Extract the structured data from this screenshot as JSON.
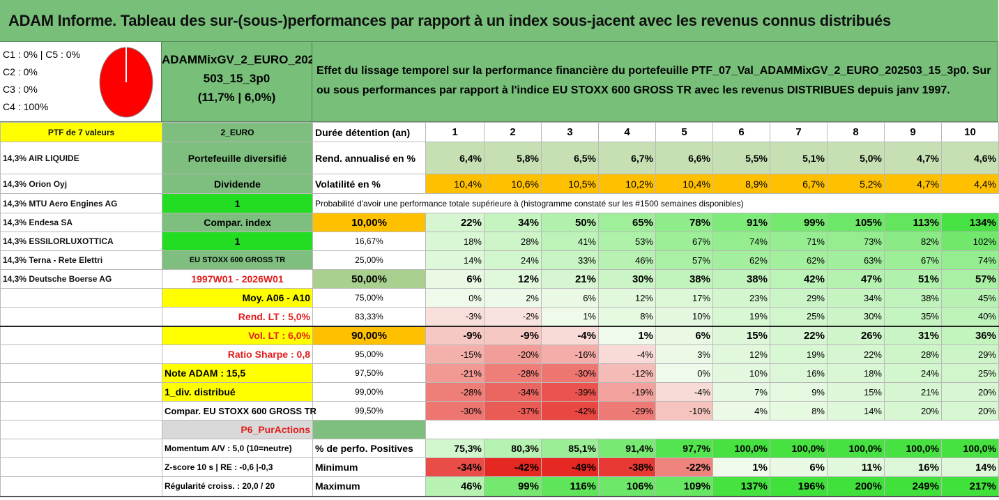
{
  "title": "ADAM Informe. Tableau des sur-(sous-)performances par rapport à un index sous-jacent avec les revenus connus distribués",
  "pie": {
    "lines": [
      "C1 : 0% | C5 : 0%",
      "C2 : 0%",
      "C3 : 0%",
      "C4 : 100%"
    ],
    "color": "#ff0000"
  },
  "portfolio_name": {
    "line1": "ADAMMixGV_2_EURO_202",
    "line2": "503_15_3p0",
    "line3": "(11,7% | 6,0%)"
  },
  "description": {
    "line1": "Effet du lissage temporel sur la performance financière du portefeuille PTF_07_Val_ADAMMixGV_2_EURO_202503_15_3p0. Sur",
    "line2": "ou sous performances par rapport à l'indice EU STOXX 600 GROSS TR avec les revenus DISTRIBUES depuis janv 1997."
  },
  "header": {
    "ptf": "PTF de 7 valeurs",
    "code": "2_EURO",
    "duration_label": "Durée détention (an)",
    "years": [
      "1",
      "2",
      "3",
      "4",
      "5",
      "6",
      "7",
      "8",
      "9",
      "10"
    ]
  },
  "rows": {
    "r1": {
      "a": "14,3% AIR LIQUIDE",
      "b": "Portefeuille diversifié",
      "c": "Rend. annualisé en %",
      "v": [
        "6,4%",
        "5,8%",
        "6,5%",
        "6,7%",
        "6,6%",
        "5,5%",
        "5,1%",
        "5,0%",
        "4,7%",
        "4,6%"
      ]
    },
    "r2": {
      "a": "14,3% Orion Oyj",
      "b": "Dividende",
      "c": "Volatilité en %",
      "v": [
        "10,4%",
        "10,6%",
        "10,5%",
        "10,2%",
        "10,4%",
        "8,9%",
        "6,7%",
        "5,2%",
        "4,7%",
        "4,4%"
      ]
    },
    "r3": {
      "a": "14,3% MTU Aero Engines AG",
      "b": "1",
      "c": "Probabilité d'avoir une performance totale supérieure à (histogramme constaté sur les #1500 semaines disponibles)"
    },
    "r4": {
      "a": "14,3% Endesa SA",
      "b": "Compar. index",
      "c": "10,00%",
      "v": [
        "22%",
        "34%",
        "50%",
        "65%",
        "78%",
        "91%",
        "99%",
        "105%",
        "113%",
        "134%"
      ]
    },
    "r5": {
      "a": "14,3% ESSILORLUXOTTICA",
      "b": "1",
      "c": "16,67%",
      "v": [
        "18%",
        "28%",
        "41%",
        "53%",
        "67%",
        "74%",
        "71%",
        "73%",
        "82%",
        "102%"
      ]
    },
    "r6": {
      "a": "14,3% Terna - Rete Elettri",
      "b": "EU STOXX 600 GROSS TR",
      "c": "25,00%",
      "v": [
        "14%",
        "24%",
        "33%",
        "46%",
        "57%",
        "62%",
        "62%",
        "63%",
        "67%",
        "74%"
      ]
    },
    "r7": {
      "a": "14,3% Deutsche Boerse AG",
      "b": "1997W01 - 2026W01",
      "c": "50,00%",
      "v": [
        "6%",
        "12%",
        "21%",
        "30%",
        "38%",
        "38%",
        "42%",
        "47%",
        "51%",
        "57%"
      ]
    },
    "r8": {
      "a": "",
      "b": "Moy. A06 - A10",
      "c": "75,00%",
      "v": [
        "0%",
        "2%",
        "6%",
        "12%",
        "17%",
        "23%",
        "29%",
        "34%",
        "38%",
        "45%"
      ]
    },
    "r9": {
      "a": "",
      "b": "Rend. LT : 5,0%",
      "c": "83,33%",
      "v": [
        "-3%",
        "-2%",
        "1%",
        "8%",
        "10%",
        "19%",
        "25%",
        "30%",
        "35%",
        "40%"
      ]
    },
    "r10": {
      "a": "",
      "b": "Vol. LT : 6,0%",
      "c": "90,00%",
      "v": [
        "-9%",
        "-9%",
        "-4%",
        "1%",
        "6%",
        "15%",
        "22%",
        "26%",
        "31%",
        "36%"
      ]
    },
    "r11": {
      "a": "",
      "b": "Ratio Sharpe : 0,8",
      "c": "95,00%",
      "v": [
        "-15%",
        "-20%",
        "-16%",
        "-4%",
        "3%",
        "12%",
        "19%",
        "22%",
        "28%",
        "29%"
      ]
    },
    "r12": {
      "a": "",
      "b": "Note ADAM : 15,5",
      "c": "97,50%",
      "v": [
        "-21%",
        "-28%",
        "-30%",
        "-12%",
        "0%",
        "10%",
        "16%",
        "18%",
        "24%",
        "25%"
      ]
    },
    "r13": {
      "a": "",
      "b": "1_div. distribué",
      "c": "99,00%",
      "v": [
        "-28%",
        "-34%",
        "-39%",
        "-19%",
        "-4%",
        "7%",
        "9%",
        "15%",
        "21%",
        "20%"
      ]
    },
    "r14": {
      "a": "",
      "b": "Compar. EU STOXX 600 GROSS TR",
      "c": "99,50%",
      "v": [
        "-30%",
        "-37%",
        "-42%",
        "-29%",
        "-10%",
        "4%",
        "8%",
        "14%",
        "20%",
        "20%"
      ]
    },
    "r15": {
      "a": "",
      "b": "P6_PurActions"
    },
    "r16": {
      "a": "",
      "b": "Momentum A/V : 5,0 (10=neutre)",
      "c": "% de perfo. Positives",
      "v": [
        "75,3%",
        "80,3%",
        "85,1%",
        "91,4%",
        "97,7%",
        "100,0%",
        "100,0%",
        "100,0%",
        "100,0%",
        "100,0%"
      ]
    },
    "r17": {
      "a": "",
      "b": "Z-score 10 s | RE : -0,6 |-0,3",
      "c": "Minimum",
      "v": [
        "-34%",
        "-42%",
        "-49%",
        "-38%",
        "-22%",
        "1%",
        "6%",
        "11%",
        "16%",
        "14%"
      ]
    },
    "r18": {
      "a": "",
      "b": "Régularité croiss. : 20,0 / 20",
      "c": "Maximum",
      "v": [
        "46%",
        "99%",
        "116%",
        "106%",
        "109%",
        "137%",
        "196%",
        "200%",
        "249%",
        "217%"
      ]
    }
  },
  "colors": {
    "header_green": "#78c07a",
    "yellow": "#ffff00",
    "orange": "#ffc000",
    "bright_green": "#22dd22",
    "red_text": "#e31b1b"
  }
}
